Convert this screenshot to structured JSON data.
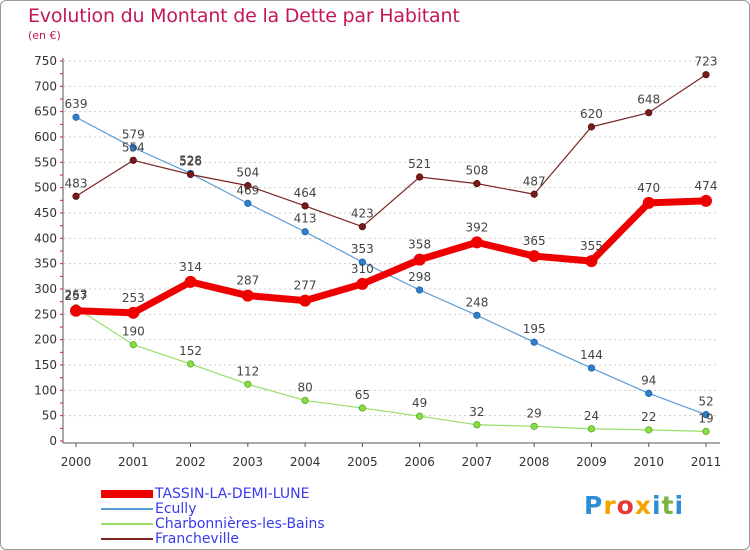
{
  "header": {
    "title": "Evolution du Montant de la Dette par Habitant",
    "subtitle": "(en €)"
  },
  "logo": {
    "text": "Proxiti",
    "colors": [
      "#2c8fd6",
      "#f4a300",
      "#e53935",
      "#f4a300",
      "#2c8fd6",
      "#7cb342",
      "#2c8fd6"
    ]
  },
  "chart_data": {
    "type": "line",
    "title": "Evolution du Montant de la Dette par Habitant",
    "subtitle": "(en €)",
    "x": [
      "2000",
      "2001",
      "2002",
      "2003",
      "2004",
      "2005",
      "2006",
      "2007",
      "2008",
      "2009",
      "2010",
      "2011"
    ],
    "ylim": [
      0,
      750
    ],
    "y_ticks": [
      0,
      50,
      100,
      150,
      200,
      250,
      300,
      350,
      400,
      450,
      500,
      550,
      600,
      650,
      700,
      750
    ],
    "grid": "horizontal dashed",
    "legend_position": "bottom-left",
    "series": [
      {
        "name": "TASSIN-LA-DEMI-LUNE",
        "color": "#ee0000",
        "values": [
          257,
          253,
          314,
          287,
          277,
          310,
          358,
          392,
          365,
          355,
          470,
          474
        ]
      },
      {
        "name": "Ecully",
        "color": "#5b9bd5",
        "values": [
          639,
          579,
          528,
          469,
          413,
          353,
          298,
          248,
          195,
          144,
          94,
          52
        ]
      },
      {
        "name": "Charbonnières-les-Bains",
        "color": "#99dd66",
        "values": [
          263,
          190,
          152,
          112,
          80,
          65,
          49,
          32,
          29,
          24,
          22,
          19
        ]
      },
      {
        "name": "Francheville",
        "color": "#7b2424",
        "values": [
          483,
          554,
          526,
          504,
          464,
          423,
          521,
          508,
          487,
          620,
          648,
          723
        ]
      }
    ]
  }
}
